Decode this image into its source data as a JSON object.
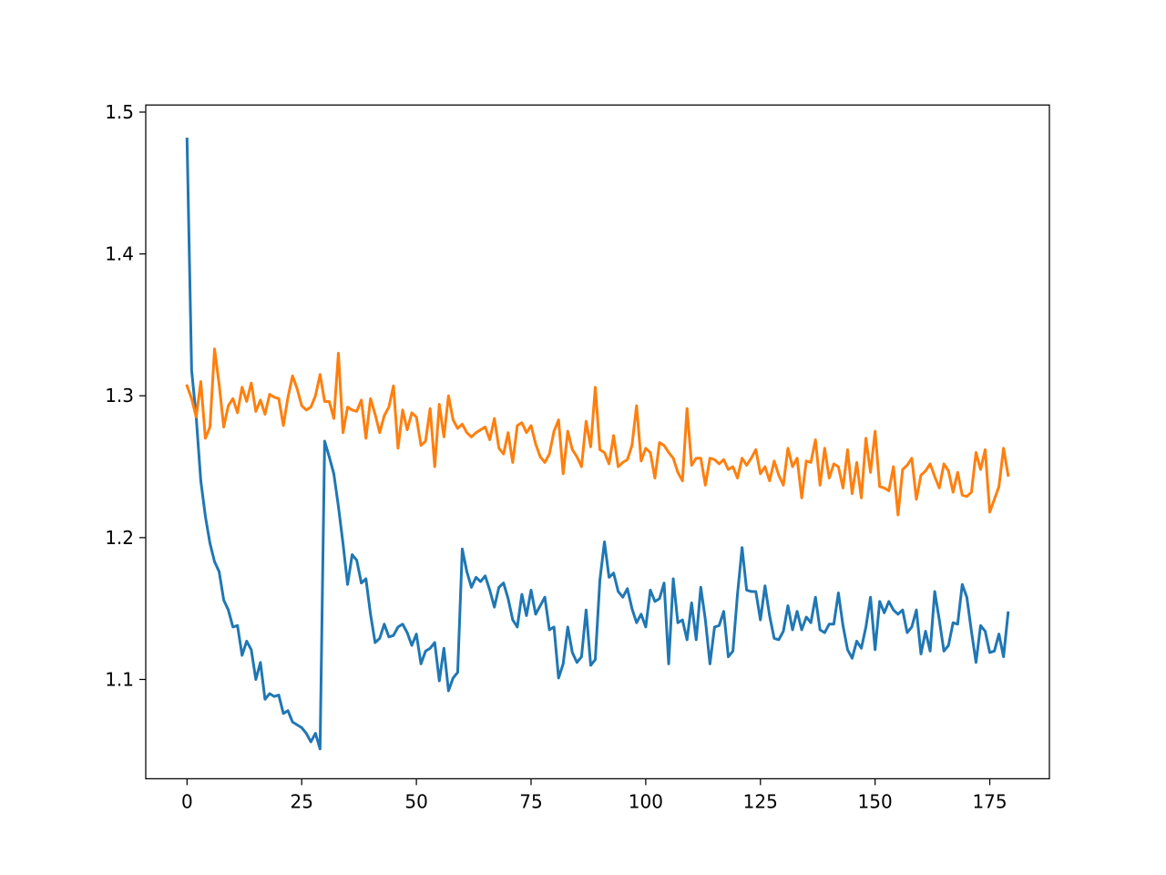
{
  "chart_data": {
    "type": "line",
    "title": "",
    "xlabel": "",
    "ylabel": "",
    "xlim": [
      -9,
      188
    ],
    "ylim": [
      1.03,
      1.505
    ],
    "xticks": [
      0,
      25,
      50,
      75,
      100,
      125,
      150,
      175
    ],
    "yticks": [
      1.1,
      1.2,
      1.3,
      1.4,
      1.5
    ],
    "xtick_labels": [
      "0",
      "25",
      "50",
      "75",
      "100",
      "125",
      "150",
      "175"
    ],
    "ytick_labels": [
      "1.1",
      "1.2",
      "1.3",
      "1.4",
      "1.5"
    ],
    "grid": false,
    "legend": null,
    "series": [
      {
        "color": "#1f77b4",
        "y": [
          1.481,
          1.318,
          1.285,
          1.24,
          1.215,
          1.196,
          1.183,
          1.176,
          1.156,
          1.149,
          1.137,
          1.138,
          1.117,
          1.127,
          1.121,
          1.1,
          1.112,
          1.086,
          1.09,
          1.088,
          1.089,
          1.076,
          1.078,
          1.07,
          1.068,
          1.066,
          1.062,
          1.056,
          1.062,
          1.051,
          1.268,
          1.257,
          1.245,
          1.222,
          1.196,
          1.167,
          1.188,
          1.184,
          1.168,
          1.171,
          1.146,
          1.126,
          1.129,
          1.139,
          1.13,
          1.131,
          1.137,
          1.139,
          1.133,
          1.124,
          1.132,
          1.111,
          1.12,
          1.122,
          1.126,
          1.099,
          1.122,
          1.092,
          1.101,
          1.105,
          1.192,
          1.176,
          1.165,
          1.172,
          1.169,
          1.173,
          1.163,
          1.151,
          1.165,
          1.168,
          1.157,
          1.142,
          1.137,
          1.16,
          1.145,
          1.163,
          1.146,
          1.152,
          1.158,
          1.135,
          1.137,
          1.101,
          1.111,
          1.137,
          1.119,
          1.112,
          1.116,
          1.149,
          1.11,
          1.114,
          1.17,
          1.197,
          1.172,
          1.175,
          1.162,
          1.158,
          1.164,
          1.15,
          1.14,
          1.146,
          1.137,
          1.163,
          1.155,
          1.157,
          1.168,
          1.111,
          1.171,
          1.14,
          1.142,
          1.128,
          1.154,
          1.128,
          1.165,
          1.142,
          1.111,
          1.137,
          1.138,
          1.148,
          1.116,
          1.12,
          1.16,
          1.193,
          1.163,
          1.162,
          1.162,
          1.142,
          1.166,
          1.145,
          1.129,
          1.128,
          1.134,
          1.152,
          1.135,
          1.148,
          1.135,
          1.144,
          1.14,
          1.158,
          1.135,
          1.133,
          1.139,
          1.139,
          1.161,
          1.138,
          1.121,
          1.115,
          1.127,
          1.122,
          1.137,
          1.158,
          1.121,
          1.155,
          1.147,
          1.155,
          1.149,
          1.146,
          1.149,
          1.133,
          1.137,
          1.149,
          1.118,
          1.134,
          1.12,
          1.162,
          1.142,
          1.12,
          1.124,
          1.14,
          1.139,
          1.167,
          1.158,
          1.134,
          1.112,
          1.138,
          1.134,
          1.119,
          1.12,
          1.132,
          1.116,
          1.147
        ]
      },
      {
        "color": "#ff7f0e",
        "y": [
          1.307,
          1.298,
          1.285,
          1.31,
          1.27,
          1.278,
          1.333,
          1.308,
          1.278,
          1.293,
          1.298,
          1.288,
          1.306,
          1.296,
          1.309,
          1.289,
          1.297,
          1.287,
          1.301,
          1.299,
          1.298,
          1.279,
          1.299,
          1.314,
          1.305,
          1.293,
          1.29,
          1.292,
          1.3,
          1.315,
          1.296,
          1.296,
          1.284,
          1.33,
          1.274,
          1.292,
          1.29,
          1.289,
          1.297,
          1.27,
          1.298,
          1.287,
          1.274,
          1.286,
          1.292,
          1.307,
          1.263,
          1.29,
          1.276,
          1.288,
          1.285,
          1.265,
          1.268,
          1.291,
          1.25,
          1.294,
          1.271,
          1.3,
          1.283,
          1.277,
          1.28,
          1.274,
          1.271,
          1.274,
          1.276,
          1.278,
          1.269,
          1.284,
          1.263,
          1.259,
          1.274,
          1.253,
          1.279,
          1.281,
          1.274,
          1.279,
          1.266,
          1.257,
          1.253,
          1.259,
          1.275,
          1.283,
          1.245,
          1.275,
          1.262,
          1.257,
          1.25,
          1.282,
          1.264,
          1.306,
          1.262,
          1.26,
          1.252,
          1.272,
          1.25,
          1.253,
          1.255,
          1.265,
          1.293,
          1.254,
          1.263,
          1.26,
          1.242,
          1.267,
          1.265,
          1.26,
          1.256,
          1.246,
          1.24,
          1.291,
          1.251,
          1.256,
          1.256,
          1.237,
          1.256,
          1.255,
          1.252,
          1.255,
          1.248,
          1.25,
          1.242,
          1.256,
          1.251,
          1.256,
          1.262,
          1.245,
          1.25,
          1.24,
          1.254,
          1.244,
          1.237,
          1.263,
          1.25,
          1.256,
          1.228,
          1.254,
          1.253,
          1.269,
          1.237,
          1.263,
          1.242,
          1.252,
          1.25,
          1.235,
          1.262,
          1.231,
          1.253,
          1.228,
          1.27,
          1.246,
          1.275,
          1.236,
          1.235,
          1.233,
          1.25,
          1.216,
          1.248,
          1.251,
          1.256,
          1.227,
          1.244,
          1.247,
          1.252,
          1.243,
          1.235,
          1.252,
          1.247,
          1.232,
          1.246,
          1.23,
          1.229,
          1.232,
          1.26,
          1.248,
          1.262,
          1.218,
          1.227,
          1.236,
          1.263,
          1.244
        ]
      }
    ]
  }
}
